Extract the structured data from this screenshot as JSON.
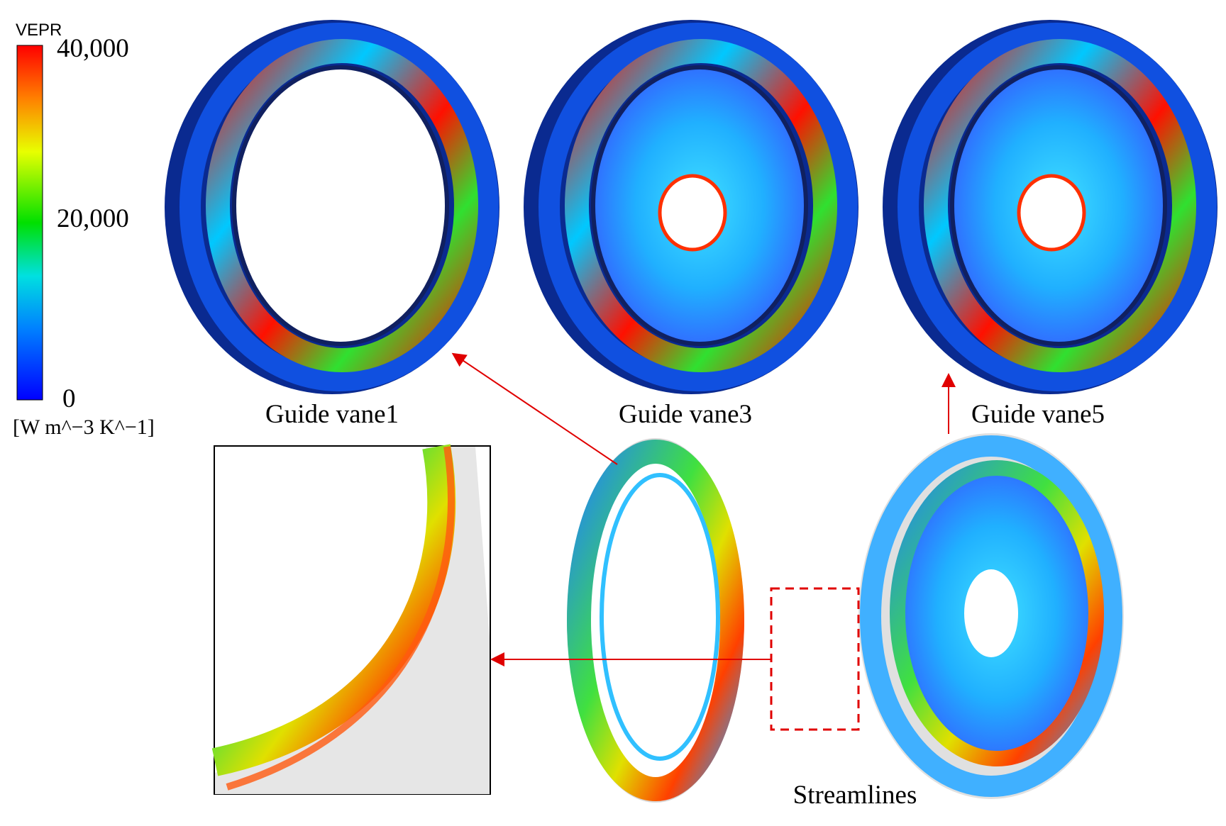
{
  "legend": {
    "title": "VEPR",
    "ticks": [
      "40,000",
      "20,000",
      "0"
    ],
    "unit": "[W m^−3 K^−1]"
  },
  "panels": [
    "Guide vane1",
    "Guide vane3",
    "Guide vane5"
  ],
  "streamlines_label": "Streamlines"
}
